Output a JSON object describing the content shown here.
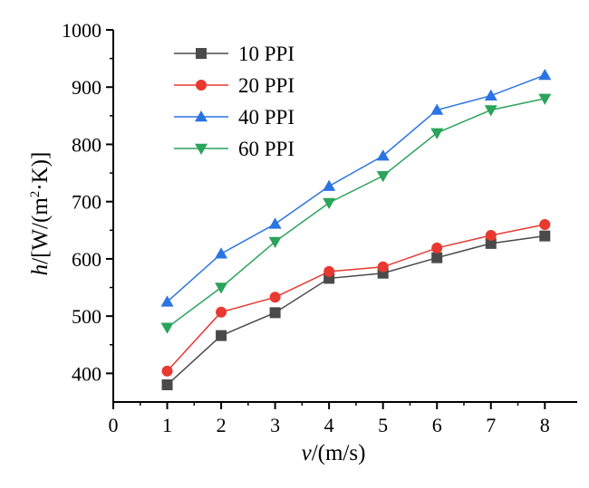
{
  "chart_data": {
    "type": "line",
    "title": "",
    "xlabel": {
      "var": "v",
      "unit": "/(m/s)"
    },
    "ylabel": {
      "var": "h",
      "unit_pre": "/[W/(m",
      "sup": "2",
      "unit_post": "·K)]"
    },
    "xlim": [
      0,
      8.6
    ],
    "ylim": [
      350,
      1000
    ],
    "x_ticks": [
      0,
      1,
      2,
      3,
      4,
      5,
      6,
      7,
      8
    ],
    "y_ticks": [
      400,
      500,
      600,
      700,
      800,
      900,
      1000
    ],
    "grid": false,
    "legend_position": "top-left",
    "x": [
      1,
      2,
      3,
      4,
      5,
      6,
      7,
      8
    ],
    "series": [
      {
        "name": "10 PPI",
        "color": "#4a4a4a",
        "marker": "square",
        "values": [
          380,
          466,
          506,
          566,
          575,
          602,
          627,
          640
        ]
      },
      {
        "name": "20 PPI",
        "color": "#e8382f",
        "marker": "circle",
        "values": [
          404,
          507,
          533,
          578,
          586,
          619,
          641,
          660
        ]
      },
      {
        "name": "40 PPI",
        "color": "#2b74e3",
        "marker": "triangle-up",
        "values": [
          525,
          609,
          661,
          727,
          780,
          860,
          885,
          921
        ]
      },
      {
        "name": "60 PPI",
        "color": "#2aa45a",
        "marker": "triangle-down",
        "values": [
          480,
          550,
          630,
          698,
          745,
          820,
          860,
          880
        ]
      }
    ]
  }
}
